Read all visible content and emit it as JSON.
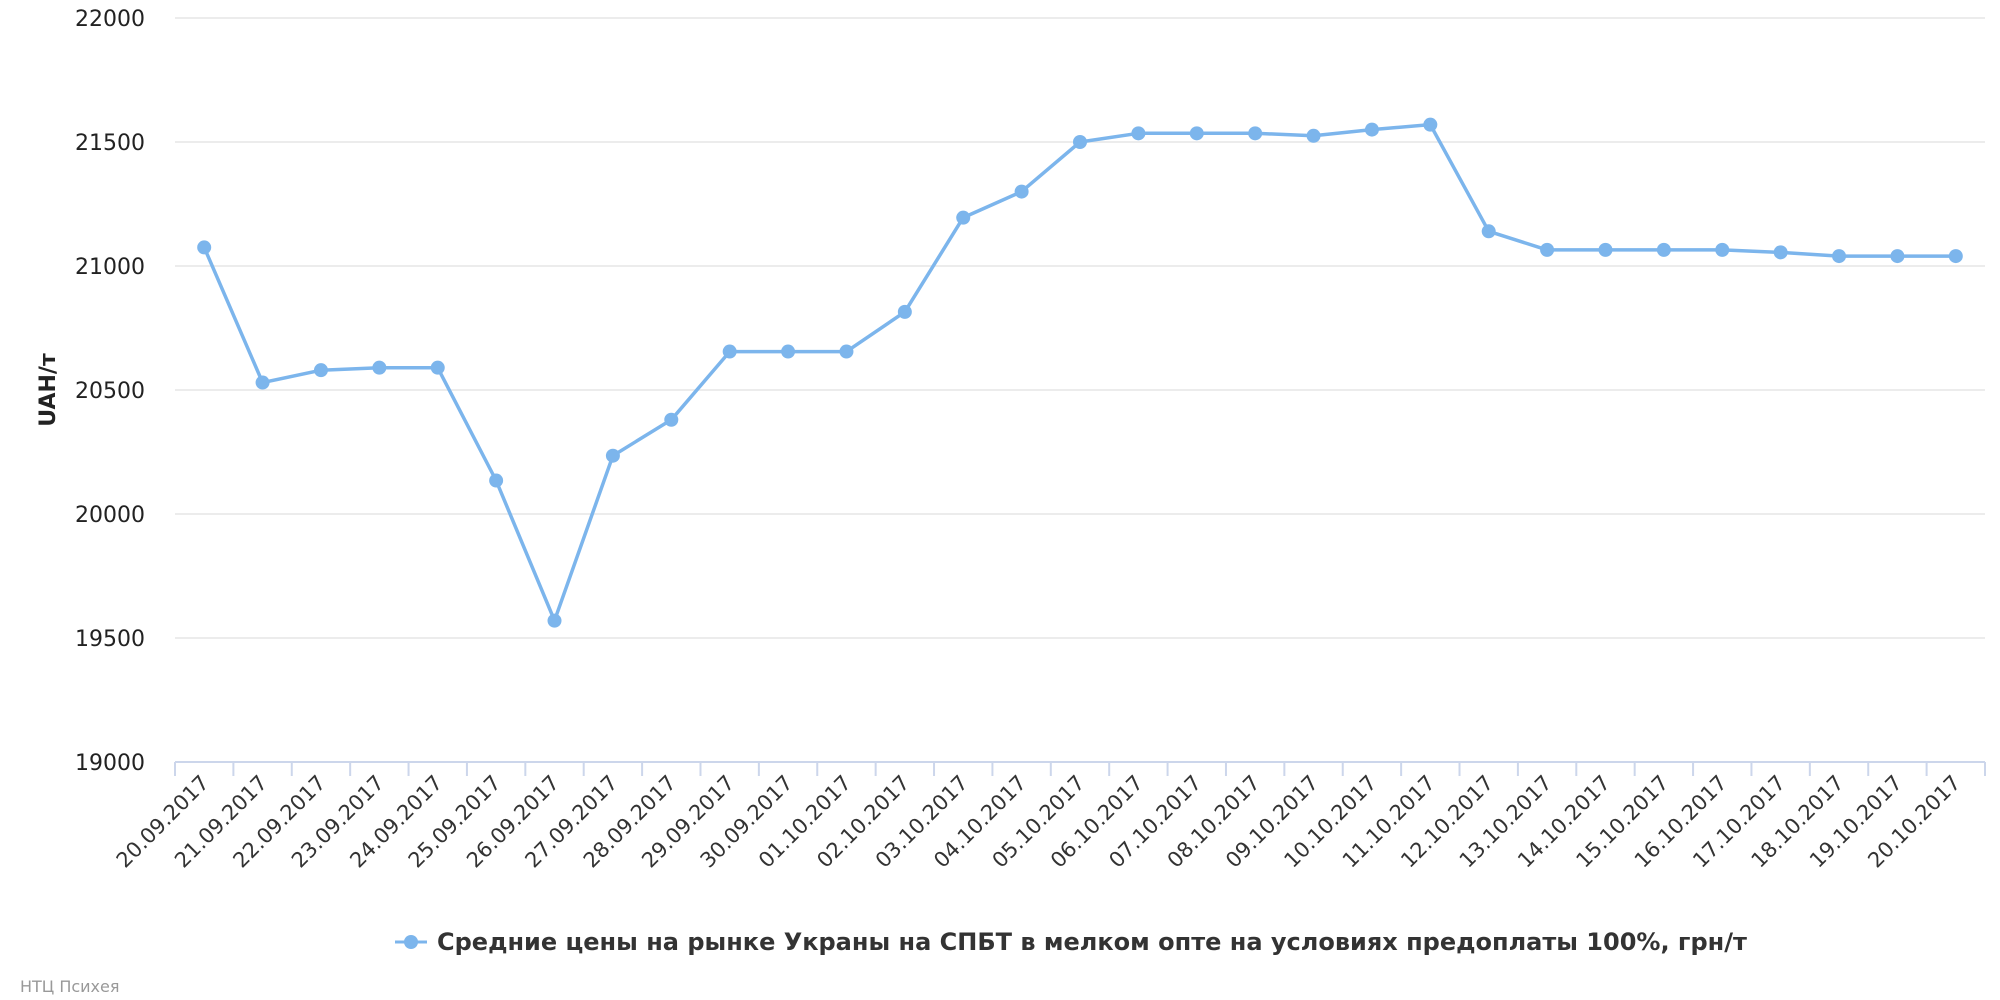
{
  "chart_data": {
    "type": "line",
    "title": "",
    "xlabel": "",
    "ylabel": "UAH/т",
    "ylim": [
      19000,
      22000
    ],
    "yticks": [
      19000,
      19500,
      20000,
      20500,
      21000,
      21500,
      22000
    ],
    "grid": true,
    "legend_position": "bottom-center",
    "categories": [
      "20.09.2017",
      "21.09.2017",
      "22.09.2017",
      "23.09.2017",
      "24.09.2017",
      "25.09.2017",
      "26.09.2017",
      "27.09.2017",
      "28.09.2017",
      "29.09.2017",
      "30.09.2017",
      "01.10.2017",
      "02.10.2017",
      "03.10.2017",
      "04.10.2017",
      "05.10.2017",
      "06.10.2017",
      "07.10.2017",
      "08.10.2017",
      "09.10.2017",
      "10.10.2017",
      "11.10.2017",
      "12.10.2017",
      "13.10.2017",
      "14.10.2017",
      "15.10.2017",
      "16.10.2017",
      "17.10.2017",
      "18.10.2017",
      "19.10.2017",
      "20.10.2017"
    ],
    "series": [
      {
        "name": "Средние цены на рынке Украны на СПБТ в мелком опте на условиях предоплаты 100%, грн/т",
        "color": "#7cb5ec",
        "values": [
          21075,
          20530,
          20580,
          20590,
          20590,
          20135,
          19570,
          20235,
          20380,
          20655,
          20655,
          20655,
          20815,
          21195,
          21300,
          21500,
          21535,
          21535,
          21535,
          21525,
          21550,
          21570,
          21140,
          21065,
          21065,
          21065,
          21065,
          21055,
          21040,
          21040,
          21040
        ]
      }
    ]
  },
  "credit": "НТЦ Психея"
}
